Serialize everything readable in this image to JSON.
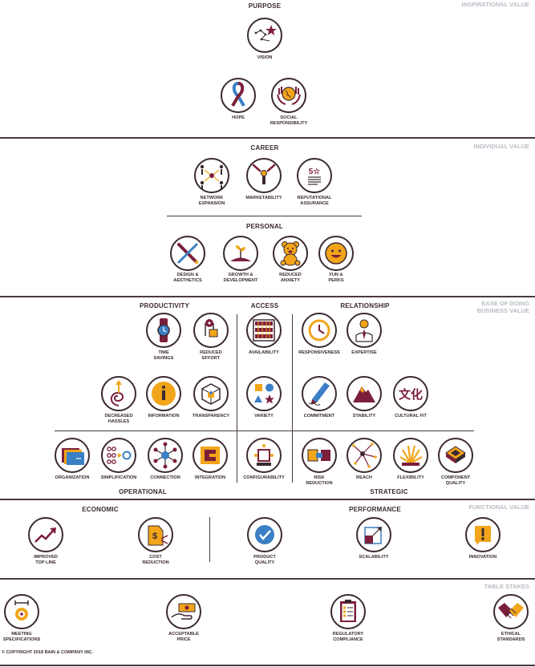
{
  "colors": {
    "maroon": "#7b1f3a",
    "orange": "#f2a51a",
    "blue": "#3b7fc4",
    "dark": "#3a2a30",
    "tier_gray": "#b8bcc4"
  },
  "sections": {
    "purpose": "PURPOSE",
    "career": "CAREER",
    "personal": "PERSONAL",
    "productivity": "PRODUCTIVITY",
    "access": "ACCESS",
    "relationship": "RELATIONSHIP",
    "operational": "OPERATIONAL",
    "strategic": "STRATEGIC",
    "economic": "ECONOMIC",
    "performance": "PERFORMANCE"
  },
  "tiers": {
    "inspirational": "INSPIRATIONAL VALUE",
    "individual": "INDIVIDUAL VALUE",
    "ease_1": "EASE OF DOING",
    "ease_2": "BUSINESS VALUE",
    "functional": "FUNCTIONAL VALUE",
    "table_stakes": "TABLE STAKES"
  },
  "elements": {
    "vision": [
      "VISION"
    ],
    "hope": [
      "HOPE"
    ],
    "social": [
      "SOCIAL",
      "RESPONSIBILITY"
    ],
    "network": [
      "NETWORK",
      "EXPANSION"
    ],
    "marketability": [
      "MARKETABILITY"
    ],
    "reputational": [
      "REPUTATIONAL",
      "ASSURANCE"
    ],
    "design": [
      "DESIGN &",
      "AESTHETICS"
    ],
    "growth": [
      "GROWTH &",
      "DEVELOPMENT"
    ],
    "anxiety": [
      "REDUCED",
      "ANXIETY"
    ],
    "fun": [
      "FUN &",
      "PERKS"
    ],
    "time": [
      "TIME",
      "SAVINGS"
    ],
    "effort": [
      "REDUCED",
      "EFFORT"
    ],
    "hassles": [
      "DECREASED",
      "HASSLES"
    ],
    "information": [
      "INFORMATION"
    ],
    "transparency": [
      "TRANSPARENCY"
    ],
    "organization": [
      "ORGANIZATION"
    ],
    "simplification": [
      "SIMPLIFICATION"
    ],
    "connection": [
      "CONNECTION"
    ],
    "integration": [
      "INTEGRATION"
    ],
    "availability": [
      "AVAILABILITY"
    ],
    "variety": [
      "VARIETY"
    ],
    "configurability": [
      "CONFIGURABILITY"
    ],
    "responsiveness": [
      "RESPONSIVENESS"
    ],
    "expertise": [
      "EXPERTISE"
    ],
    "commitment": [
      "COMMITMENT"
    ],
    "stability": [
      "STABILITY"
    ],
    "cultural": [
      "CULTURAL FIT"
    ],
    "risk": [
      "RISK",
      "REDUCTION"
    ],
    "reach": [
      "REACH"
    ],
    "flexibility": [
      "FLEXIBILITY"
    ],
    "component": [
      "COMPONENT",
      "QUALITY"
    ],
    "topline": [
      "IMPROVED",
      "TOP LINE"
    ],
    "cost": [
      "COST",
      "REDUCTION"
    ],
    "product": [
      "PRODUCT",
      "QUALITY"
    ],
    "scalability": [
      "SCALABILITY"
    ],
    "innovation": [
      "INNOVATION"
    ],
    "meeting": [
      "MEETING",
      "SPECIFICATIONS"
    ],
    "price": [
      "ACCEPTABLE",
      "PRICE"
    ],
    "regulatory": [
      "REGULATORY",
      "COMPLIANCE"
    ],
    "ethical": [
      "ETHICAL",
      "STANDARDS"
    ]
  },
  "glyphs": {
    "cultural": "文化",
    "reputational": "5☆"
  },
  "copyright": "© COPYRIGHT 2018 BAIN & COMPANY INC."
}
